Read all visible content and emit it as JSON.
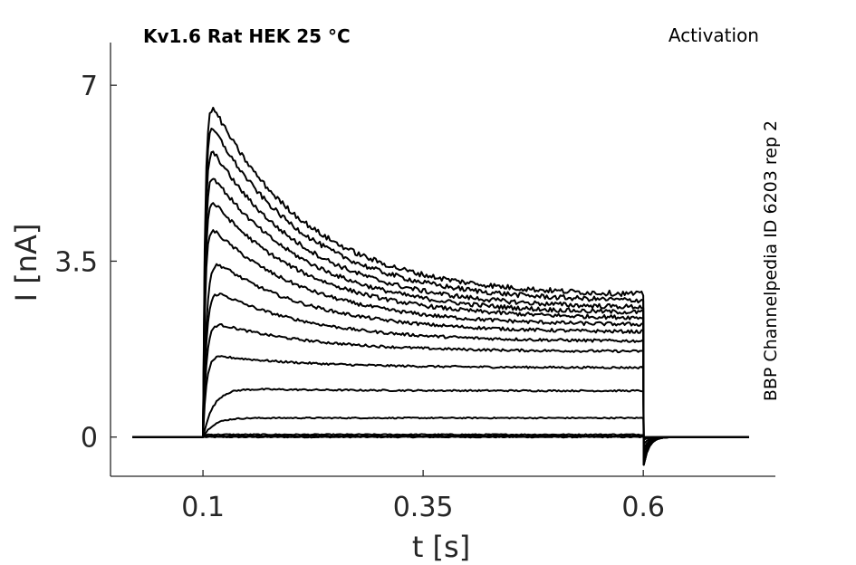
{
  "chart_data": {
    "type": "line",
    "title_left": "Kv1.6  Rat  HEK  25 °C",
    "title_right": "Activation",
    "side_note": "BBP Channelpedia ID 6203 rep 2",
    "xlabel": "t [s]",
    "ylabel": "I [nA]",
    "xlim": [
      -0.005,
      0.75
    ],
    "ylim": [
      -0.78,
      7.85
    ],
    "xticks": [
      0.1,
      0.35,
      0.6
    ],
    "xtick_labels": [
      "0.1",
      "0.35",
      "0.6"
    ],
    "yticks": [
      0,
      3.5,
      7
    ],
    "ytick_labels": [
      "0",
      "3.5",
      "7"
    ],
    "grid": false,
    "legend": "none",
    "trace_color": "#000000",
    "stimulus": {
      "baseline_start": 0.02,
      "step_on": 0.1,
      "step_off": 0.6,
      "end": 0.72
    },
    "series": [
      {
        "peak": 0.0,
        "end": 0.0
      },
      {
        "peak": 0.02,
        "end": 0.02
      },
      {
        "peak": 0.05,
        "end": 0.04
      },
      {
        "peak": 0.38,
        "end": 0.38
      },
      {
        "peak": 0.98,
        "end": 0.92
      },
      {
        "peak": 1.65,
        "end": 1.38
      },
      {
        "peak": 2.35,
        "end": 1.7
      },
      {
        "peak": 3.05,
        "end": 1.9
      },
      {
        "peak": 3.7,
        "end": 2.08
      },
      {
        "peak": 4.35,
        "end": 2.22
      },
      {
        "peak": 4.95,
        "end": 2.35
      },
      {
        "peak": 5.5,
        "end": 2.45
      },
      {
        "peak": 6.05,
        "end": 2.55
      },
      {
        "peak": 6.55,
        "end": 2.68
      },
      {
        "peak": 7.0,
        "end": 2.8
      }
    ]
  }
}
